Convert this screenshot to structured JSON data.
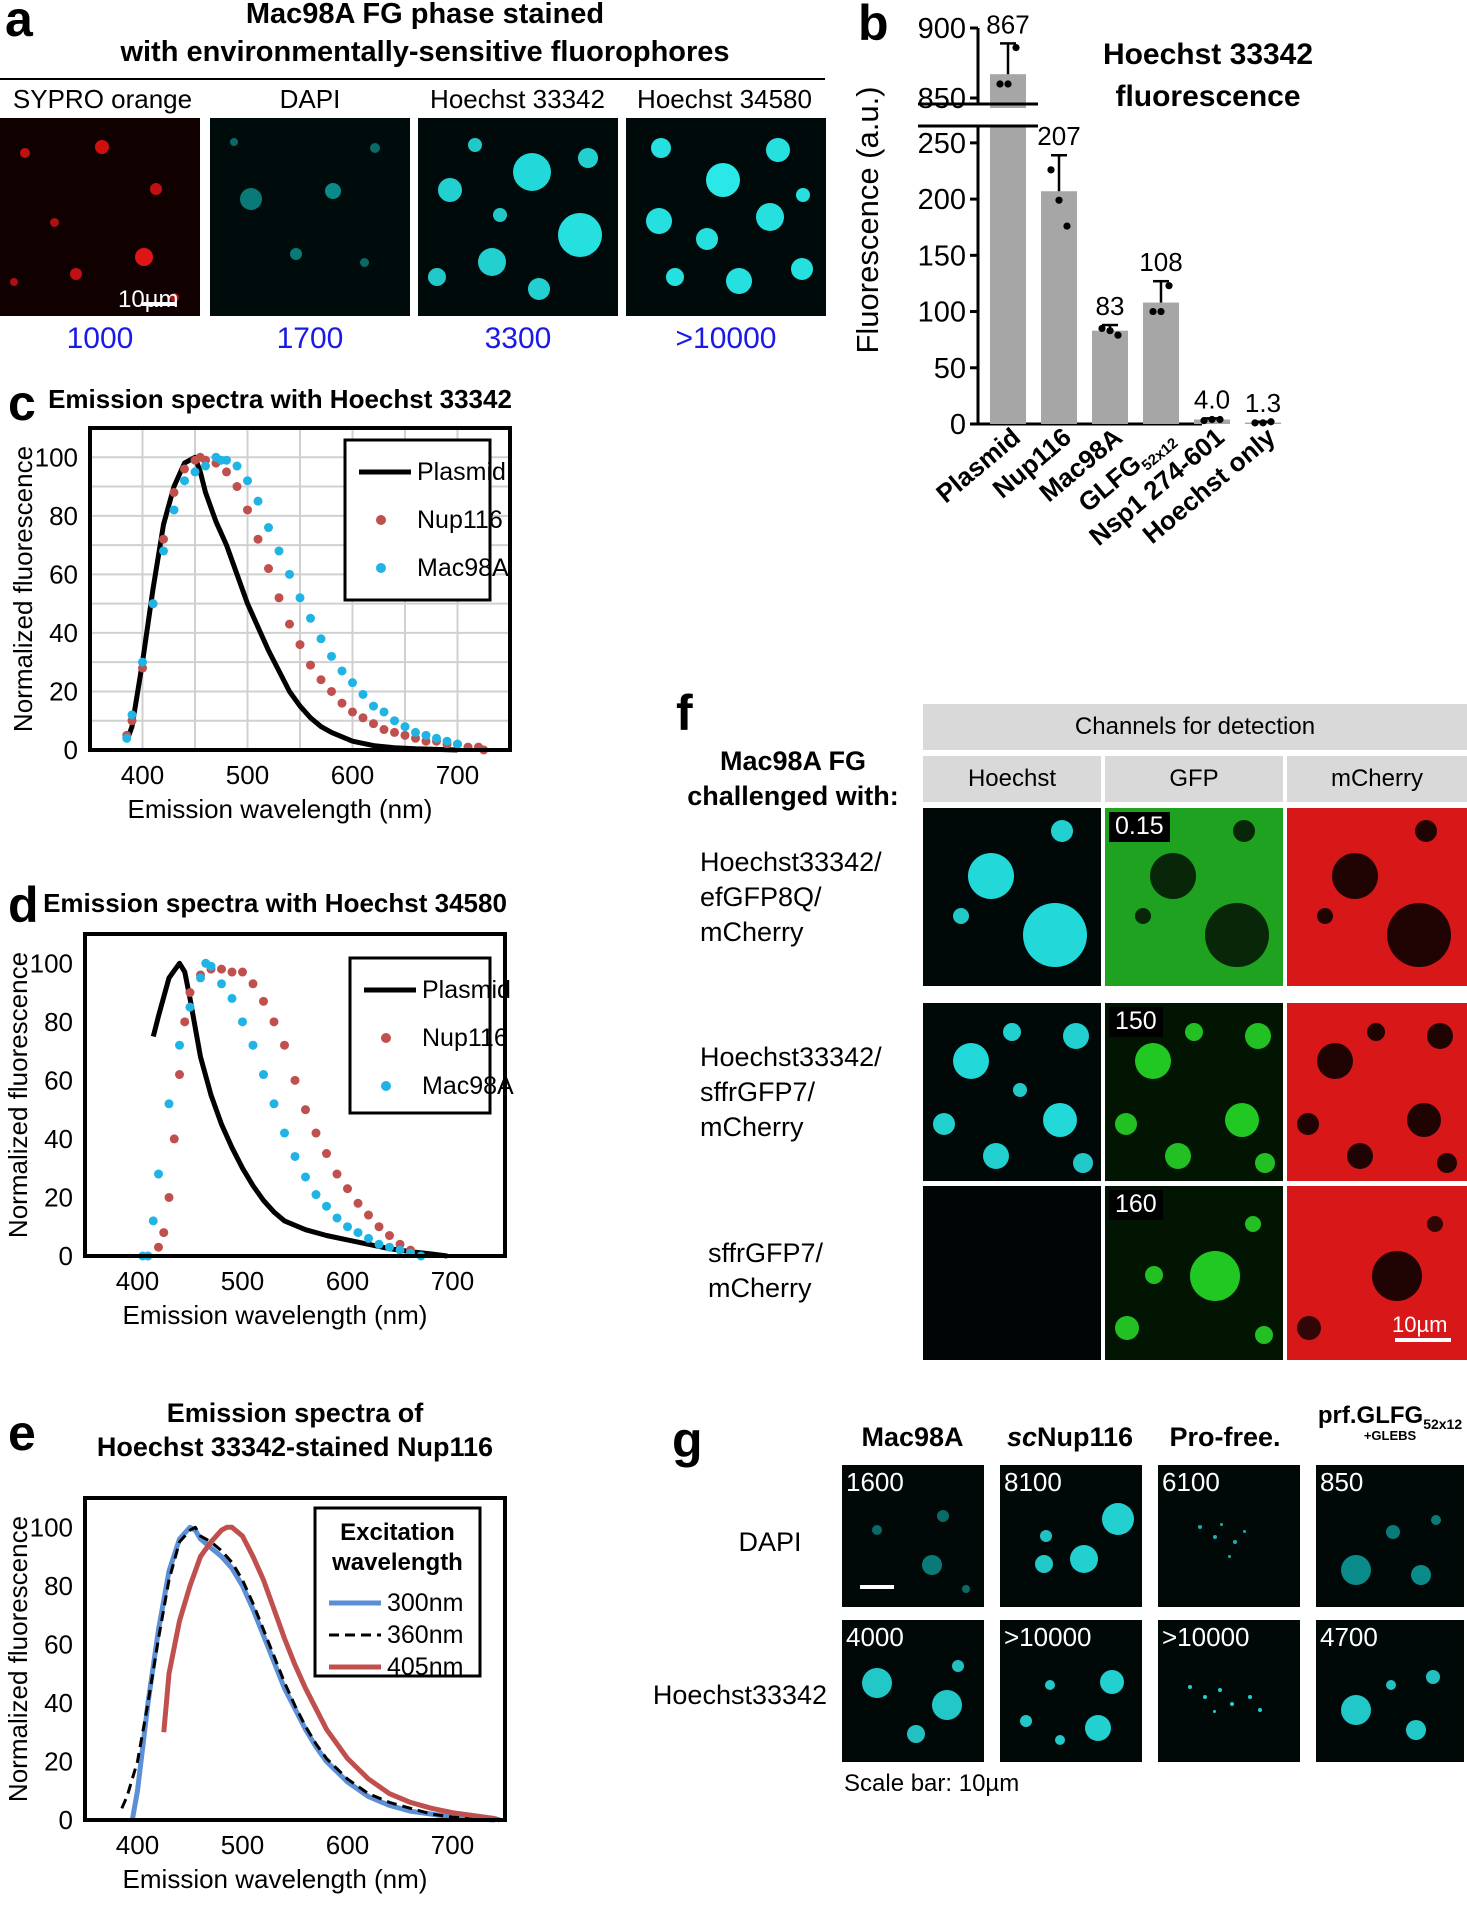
{
  "panel_a": {
    "label": "a",
    "title_line1": "Mac98A FG phase stained",
    "title_line2": "with environmentally-sensitive fluorophores",
    "images": [
      {
        "caption": "SYPRO orange",
        "intensity": "1000",
        "color": "#e01010"
      },
      {
        "caption": "DAPI",
        "intensity": "1700",
        "color": "#0a8a88"
      },
      {
        "caption": "Hoechst 33342",
        "intensity": "3300",
        "color": "#22e0e0"
      },
      {
        "caption": "Hoechst 34580",
        "intensity": ">10000",
        "color": "#22e0e0"
      }
    ],
    "scale_bar": "10µm"
  },
  "panel_f": {
    "label": "f",
    "left_line1": "Mac98A FG",
    "left_line2": "challenged with:",
    "header": "Channels for detection",
    "channels": [
      "Hoechst",
      "GFP",
      "mCherry"
    ],
    "rows": [
      {
        "line1": "Hoechst33342/",
        "line2": "efGFP8Q/",
        "line3": "mCherry",
        "gfp_value": "0.15"
      },
      {
        "line1": "Hoechst33342/",
        "line2": "sffrGFP7/",
        "line3": "mCherry",
        "gfp_value": "150"
      },
      {
        "line1": "sffrGFP7/",
        "line2": "mCherry",
        "line3": "",
        "gfp_value": "160"
      }
    ],
    "scale_bar": "10µm"
  },
  "panel_g": {
    "label": "g",
    "columns": [
      "Mac98A",
      "Nup116",
      "Pro-free.",
      "prf.GLFG"
    ],
    "col2_prefix": "sc",
    "col4_sub": "52x12",
    "col4_sub2": "+GLEBS",
    "rows": [
      {
        "label": "DAPI",
        "values": [
          "1600",
          "8100",
          "6100",
          "850"
        ]
      },
      {
        "label": "Hoechst33342",
        "values": [
          "4000",
          ">10000",
          ">10000",
          "4700"
        ]
      }
    ],
    "scale_note": "Scale bar: 10µm"
  },
  "chart_data": [
    {
      "panel": "b",
      "type": "bar",
      "title": "Hoechst 33342 fluorescence",
      "ylabel": "Fluorescence (a.u.)",
      "xlabel": "",
      "categories": [
        "Plasmid",
        "Nup116",
        "Mac98A",
        "GLFG",
        "Nsp1 274-601",
        "Hoechst only"
      ],
      "category_subscript": {
        "GLFG": "52x12"
      },
      "values": [
        867,
        207,
        83,
        108,
        4.0,
        1.3
      ],
      "value_labels": [
        "867",
        "207",
        "83",
        "108",
        "4.0",
        "1.3"
      ],
      "error_upper": [
        889,
        239,
        88,
        127,
        5,
        2
      ],
      "points": [
        [
          860,
          860,
          886
        ],
        [
          226,
          199,
          176
        ],
        [
          85,
          83,
          79
        ],
        [
          100,
          100,
          123
        ],
        [
          3,
          4,
          4
        ],
        [
          1,
          1,
          2
        ]
      ],
      "yticks_lower": [
        0,
        50,
        100,
        150,
        200,
        250
      ],
      "yticks_upper": [
        850,
        900
      ],
      "axis_break": [
        265,
        840
      ],
      "ylim": [
        0,
        900
      ],
      "bar_color": "#a6a6a6"
    },
    {
      "panel": "c",
      "type": "line",
      "title": "Emission spectra with Hoechst 33342",
      "xlabel": "Emission wavelength (nm)",
      "ylabel": "Normalized fluorescence",
      "xlim": [
        350,
        750
      ],
      "ylim": [
        0,
        110
      ],
      "xticks": [
        400,
        500,
        600,
        700
      ],
      "yticks": [
        0,
        20,
        40,
        60,
        80,
        100
      ],
      "grid": true,
      "legend": "top-right",
      "series": [
        {
          "name": "Plasmid",
          "style": "line",
          "color": "#000000",
          "x": [
            385,
            390,
            400,
            410,
            420,
            430,
            440,
            450,
            455,
            460,
            470,
            480,
            490,
            500,
            510,
            520,
            530,
            540,
            550,
            560,
            570,
            580,
            600,
            620,
            640,
            660,
            680,
            700
          ],
          "y": [
            3,
            8,
            30,
            55,
            77,
            90,
            98,
            100,
            95,
            88,
            78,
            70,
            60,
            50,
            42,
            34,
            27,
            20,
            15,
            11,
            8,
            6,
            3,
            1.5,
            0.8,
            0.4,
            0.2,
            0
          ]
        },
        {
          "name": "Nup116",
          "style": "dots",
          "color": "#c0504d",
          "x": [
            385,
            390,
            400,
            410,
            420,
            430,
            440,
            450,
            455,
            460,
            470,
            480,
            490,
            500,
            510,
            520,
            530,
            540,
            550,
            560,
            570,
            580,
            590,
            600,
            610,
            620,
            630,
            640,
            650,
            660,
            670,
            680,
            690,
            700,
            710,
            720,
            725
          ],
          "y": [
            5,
            10,
            28,
            50,
            72,
            88,
            96,
            99,
            100,
            99,
            98,
            95,
            90,
            82,
            72,
            62,
            52,
            43,
            36,
            29,
            24,
            20,
            16,
            13,
            11,
            9,
            7,
            6,
            5,
            4,
            3,
            3,
            2,
            2,
            1,
            1,
            0
          ]
        },
        {
          "name": "Mac98A",
          "style": "dots",
          "color": "#1fb4e4",
          "x": [
            385,
            390,
            400,
            410,
            420,
            430,
            440,
            450,
            460,
            470,
            475,
            480,
            490,
            500,
            510,
            520,
            530,
            540,
            550,
            560,
            570,
            580,
            590,
            600,
            610,
            620,
            630,
            640,
            650,
            660,
            670,
            680,
            690,
            700
          ],
          "y": [
            4,
            12,
            30,
            50,
            68,
            82,
            92,
            95,
            97,
            100,
            99,
            99,
            97,
            92,
            85,
            76,
            68,
            60,
            52,
            45,
            38,
            32,
            27,
            23,
            19,
            15,
            13,
            10,
            8,
            6,
            5,
            4,
            3,
            2
          ]
        }
      ]
    },
    {
      "panel": "d",
      "type": "line",
      "title": "Emission spectra with Hoechst 34580",
      "xlabel": "Emission wavelength (nm)",
      "ylabel": "Normalized fluorescence",
      "xlim": [
        350,
        750
      ],
      "ylim": [
        0,
        110
      ],
      "xticks": [
        400,
        500,
        600,
        700
      ],
      "yticks": [
        0,
        20,
        40,
        60,
        80,
        100
      ],
      "grid": false,
      "legend": "top-right",
      "series": [
        {
          "name": "Plasmid",
          "style": "line",
          "color": "#000000",
          "x": [
            415,
            420,
            430,
            440,
            445,
            450,
            460,
            470,
            480,
            490,
            500,
            510,
            520,
            530,
            540,
            560,
            580,
            600,
            620,
            640,
            660,
            680,
            695
          ],
          "y": [
            75,
            82,
            95,
            100,
            97,
            88,
            68,
            55,
            45,
            37,
            30,
            24,
            19,
            15,
            12,
            9,
            7,
            5.5,
            4,
            2.5,
            1.5,
            0.7,
            0
          ]
        },
        {
          "name": "Nup116",
          "style": "dots",
          "color": "#c0504d",
          "x": [
            420,
            425,
            430,
            435,
            440,
            445,
            450,
            460,
            470,
            480,
            490,
            500,
            510,
            520,
            530,
            540,
            550,
            560,
            570,
            580,
            590,
            600,
            610,
            620,
            630,
            640,
            650,
            660
          ],
          "y": [
            3,
            8,
            20,
            40,
            62,
            80,
            90,
            96,
            98,
            98,
            97,
            97,
            93,
            87,
            80,
            72,
            60,
            50,
            42,
            35,
            28,
            23,
            18,
            14,
            10,
            7,
            4,
            2
          ]
        },
        {
          "name": "Mac98A",
          "style": "dots",
          "color": "#1fb4e4",
          "x": [
            405,
            410,
            415,
            420,
            430,
            440,
            450,
            460,
            465,
            470,
            480,
            490,
            500,
            510,
            520,
            530,
            540,
            550,
            560,
            570,
            580,
            590,
            600,
            610,
            620,
            630,
            640,
            650,
            660,
            670
          ],
          "y": [
            0,
            0,
            12,
            28,
            52,
            72,
            85,
            95,
            100,
            99,
            93,
            88,
            80,
            72,
            62,
            52,
            42,
            34,
            27,
            21,
            17,
            13,
            10,
            8,
            6,
            4,
            3,
            2,
            1,
            0
          ]
        }
      ]
    },
    {
      "panel": "e",
      "type": "line",
      "title": "Emission spectra of Hoechst 33342-stained Nup116",
      "xlabel": "Emission wavelength (nm)",
      "ylabel": "Normalized fluorescence",
      "xlim": [
        350,
        750
      ],
      "ylim": [
        0,
        110
      ],
      "xticks": [
        400,
        500,
        600,
        700
      ],
      "yticks": [
        0,
        20,
        40,
        60,
        80,
        100
      ],
      "grid": false,
      "legend": "top-right",
      "legend_title": "Excitation wavelength",
      "series": [
        {
          "name": "300nm",
          "style": "line",
          "color": "#5b8fd6",
          "x": [
            395,
            400,
            410,
            420,
            430,
            440,
            450,
            455,
            460,
            470,
            480,
            490,
            500,
            510,
            520,
            530,
            540,
            550,
            560,
            570,
            580,
            600,
            620,
            640,
            660,
            680,
            700,
            720,
            740
          ],
          "y": [
            0,
            10,
            40,
            65,
            85,
            96,
            100,
            99,
            96,
            93,
            90,
            86,
            80,
            72,
            63,
            54,
            45,
            38,
            31,
            25,
            20,
            13,
            8,
            5,
            3,
            2,
            1,
            0.5,
            0
          ]
        },
        {
          "name": "360nm",
          "style": "dash",
          "color": "#000000",
          "x": [
            385,
            390,
            400,
            410,
            420,
            430,
            440,
            450,
            455,
            460,
            470,
            480,
            490,
            500,
            510,
            520,
            530,
            540,
            550,
            560,
            570,
            580,
            600,
            620,
            640,
            660,
            680,
            700,
            720,
            740
          ],
          "y": [
            4,
            8,
            20,
            40,
            62,
            82,
            95,
            99,
            100,
            97,
            95,
            92,
            88,
            82,
            74,
            65,
            56,
            47,
            39,
            32,
            26,
            21,
            14,
            9,
            6,
            4,
            2,
            1,
            0.5,
            0
          ]
        },
        {
          "name": "405nm",
          "style": "line",
          "color": "#c0504d",
          "x": [
            425,
            430,
            440,
            450,
            460,
            470,
            480,
            485,
            490,
            500,
            510,
            520,
            530,
            540,
            550,
            560,
            570,
            580,
            600,
            620,
            640,
            660,
            680,
            700,
            720,
            740,
            745
          ],
          "y": [
            30,
            50,
            68,
            80,
            90,
            95,
            99,
            100,
            100,
            97,
            90,
            82,
            72,
            62,
            53,
            45,
            38,
            31,
            21,
            14,
            9,
            6,
            4,
            2.5,
            1.5,
            0.5,
            0
          ]
        }
      ]
    }
  ]
}
